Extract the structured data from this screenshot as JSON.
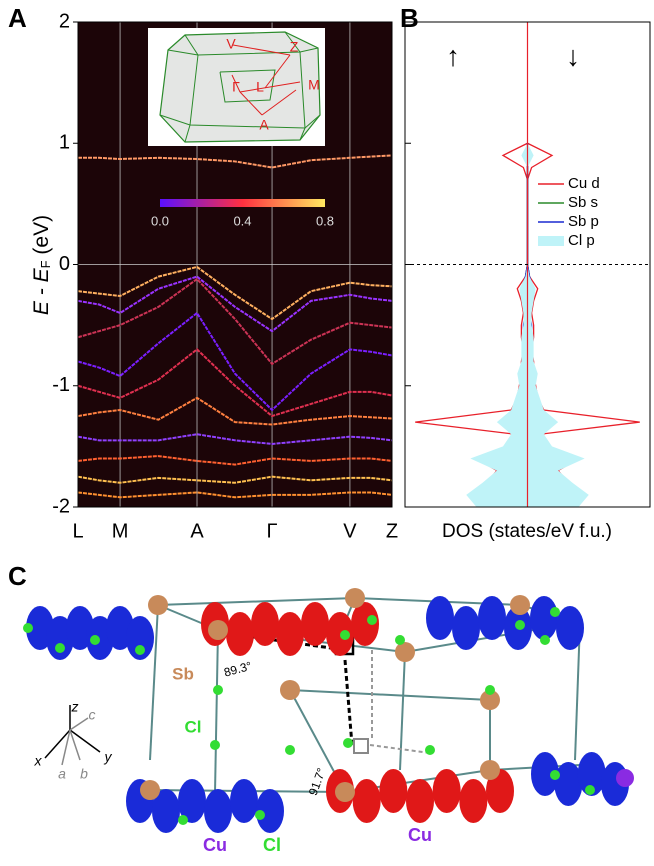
{
  "panels": [
    "A",
    "B",
    "C"
  ],
  "chart_data": [
    {
      "type": "line",
      "ylabel": "E",
      "ylabel_mid": " - E",
      "ylabel_sub": "F",
      "ylabel_unit": " (eV)",
      "background": "#1c0508",
      "grid": true,
      "hline": 0,
      "xlim": [
        0,
        1
      ],
      "xticks": [
        {
          "value": 0,
          "label": "L"
        },
        {
          "value": 0.134,
          "label": "M"
        },
        {
          "value": 0.379,
          "label": "A"
        },
        {
          "value": 0.618,
          "label": "Γ"
        },
        {
          "value": 0.866,
          "label": "V"
        },
        {
          "value": 1,
          "label": "Z"
        }
      ],
      "ylim": [
        -2,
        2
      ],
      "yticks": [
        -2,
        -1,
        0,
        1,
        2
      ],
      "x": [
        0,
        0.067,
        0.134,
        0.256,
        0.379,
        0.5,
        0.618,
        0.742,
        0.866,
        0.933,
        1
      ],
      "series": [
        {
          "color": "#ff9966",
          "values": [
            0.88,
            0.88,
            0.87,
            0.88,
            0.87,
            0.85,
            0.8,
            0.86,
            0.88,
            0.89,
            0.9
          ]
        },
        {
          "color": "#ffb060",
          "values": [
            -0.22,
            -0.24,
            -0.26,
            -0.1,
            -0.02,
            -0.25,
            -0.45,
            -0.22,
            -0.15,
            -0.17,
            -0.18
          ]
        },
        {
          "color": "#9933ff",
          "values": [
            -0.3,
            -0.33,
            -0.4,
            -0.2,
            -0.1,
            -0.35,
            -0.55,
            -0.3,
            -0.25,
            -0.28,
            -0.3
          ]
        },
        {
          "color": "#cc3355",
          "values": [
            -0.6,
            -0.55,
            -0.5,
            -0.35,
            -0.12,
            -0.45,
            -0.82,
            -0.62,
            -0.48,
            -0.5,
            -0.52
          ]
        },
        {
          "color": "#7a1fff",
          "values": [
            -0.8,
            -0.85,
            -0.92,
            -0.65,
            -0.4,
            -0.9,
            -1.2,
            -0.9,
            -0.7,
            -0.72,
            -0.75
          ]
        },
        {
          "color": "#e03050",
          "values": [
            -1,
            -1.05,
            -1.1,
            -0.95,
            -0.7,
            -1,
            -1.25,
            -1.15,
            -1.05,
            -1.05,
            -1.08
          ]
        },
        {
          "color": "#ff8040",
          "values": [
            -1.25,
            -1.22,
            -1.2,
            -1.28,
            -1.1,
            -1.3,
            -1.32,
            -1.28,
            -1.25,
            -1.26,
            -1.27
          ]
        },
        {
          "color": "#9040ff",
          "values": [
            -1.42,
            -1.45,
            -1.45,
            -1.45,
            -1.4,
            -1.45,
            -1.48,
            -1.45,
            -1.42,
            -1.43,
            -1.45
          ]
        },
        {
          "color": "#ff6030",
          "values": [
            -1.62,
            -1.6,
            -1.6,
            -1.58,
            -1.62,
            -1.65,
            -1.6,
            -1.62,
            -1.6,
            -1.6,
            -1.62
          ]
        },
        {
          "color": "#ffc050",
          "values": [
            -1.75,
            -1.78,
            -1.8,
            -1.76,
            -1.78,
            -1.8,
            -1.75,
            -1.78,
            -1.76,
            -1.76,
            -1.78
          ]
        },
        {
          "color": "#ff9030",
          "values": [
            -1.88,
            -1.9,
            -1.92,
            -1.9,
            -1.88,
            -1.92,
            -1.9,
            -1.9,
            -1.88,
            -1.88,
            -1.9
          ]
        }
      ],
      "colorbar": {
        "lim": [
          0,
          0.8
        ],
        "ticks": [
          {
            "value": 0,
            "label": "0.0"
          },
          {
            "value": 0.4,
            "label": "0.4"
          },
          {
            "value": 0.8,
            "label": "0.8"
          }
        ]
      },
      "inset_labels": [
        "V",
        "Z",
        "Γ",
        "L",
        "M",
        "A"
      ]
    },
    {
      "type": "dos",
      "xlabel": "DOS (states/eV f.u.)",
      "annotations": [
        "↑",
        "↓"
      ],
      "hline": 0,
      "xlim": [
        -6,
        6
      ],
      "ylim": [
        -2,
        2
      ],
      "yticks": [
        -1,
        0,
        1
      ],
      "y": [
        -2,
        -1.9,
        -1.8,
        -1.7,
        -1.6,
        -1.5,
        -1.4,
        -1.3,
        -1.2,
        -1.1,
        -1,
        -0.9,
        -0.8,
        -0.7,
        -0.6,
        -0.5,
        -0.4,
        -0.3,
        -0.2,
        -0.1,
        0,
        0.1,
        0.2,
        0.3,
        0.4,
        0.5,
        0.6,
        0.7,
        0.8,
        0.9,
        1
      ],
      "series": [
        {
          "name": "Cu d",
          "color": "#e8202a",
          "values": [
            0.5,
            0.6,
            2,
            1.5,
            2.5,
            0.8,
            0.6,
            5.5,
            0.8,
            0.5,
            0.4,
            0.3,
            0.3,
            0.2,
            0.3,
            0.3,
            0.2,
            0.3,
            0.5,
            0.1,
            0,
            0,
            0,
            0,
            0,
            0,
            0,
            0,
            0.2,
            1.2,
            0
          ]
        },
        {
          "name": "Sb s",
          "color": "#2a8a2a",
          "values": [
            0.1,
            0.1,
            0.1,
            0.1,
            0.1,
            0.1,
            0.1,
            0.1,
            0.1,
            0.1,
            0.1,
            0.1,
            0.1,
            0.1,
            0.1,
            0.1,
            0.1,
            0.1,
            0.2,
            0.1,
            0,
            0,
            0,
            0,
            0,
            0,
            0,
            0,
            0,
            0,
            0
          ]
        },
        {
          "name": "Sb p",
          "color": "#1a2ad0",
          "values": [
            0.3,
            0.2,
            0.3,
            0.2,
            0.3,
            0.2,
            0.2,
            0.4,
            0.2,
            0.2,
            0.2,
            0.2,
            0.2,
            0.1,
            0.2,
            0.2,
            0.1,
            0.2,
            0.3,
            0.1,
            0,
            0,
            0,
            0,
            0,
            0,
            0,
            0,
            0,
            0.1,
            0
          ]
        },
        {
          "name": "Cl p",
          "color": "#bff3f8",
          "fill": true,
          "values": [
            2.5,
            3,
            2.2,
            1.5,
            2.8,
            1.2,
            0.8,
            1.5,
            0.8,
            0.6,
            0.4,
            0.5,
            0.3,
            0.3,
            0.3,
            0.2,
            0.2,
            0.3,
            0.4,
            0.1,
            0,
            0,
            0,
            0,
            0,
            0,
            0,
            0,
            0,
            0.3,
            0
          ]
        }
      ]
    }
  ],
  "structure": {
    "angle_labels": [
      "89.3°",
      "91.7°"
    ],
    "atom_labels": [
      "Sb",
      "Cl",
      "Cu",
      "Cl",
      "Cu"
    ],
    "axis_labels": [
      "z",
      "c",
      "x",
      "a",
      "b",
      "y"
    ]
  }
}
